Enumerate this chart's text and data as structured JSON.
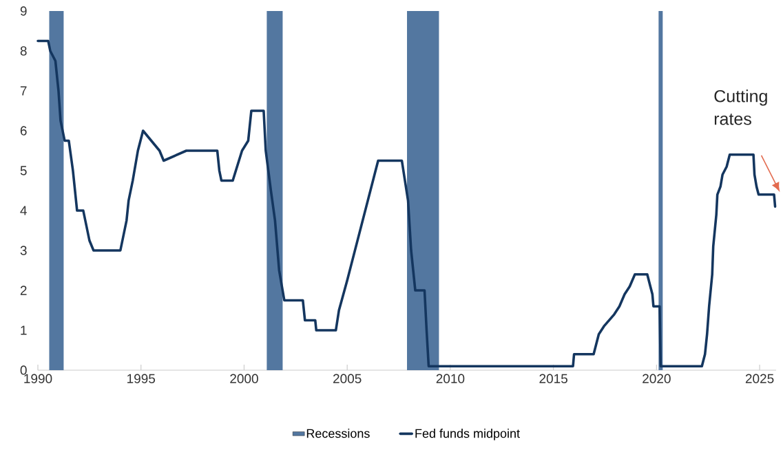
{
  "chart_data": {
    "type": "line",
    "x": [
      1990.0,
      1990.5,
      1990.6,
      1990.85,
      1991.0,
      1991.1,
      1991.3,
      1991.5,
      1991.7,
      1991.9,
      1992.2,
      1992.3,
      1992.5,
      1992.7,
      1994.0,
      1994.3,
      1994.4,
      1994.6,
      1994.85,
      1995.1,
      1995.5,
      1995.9,
      1996.1,
      1997.2,
      1998.7,
      1998.8,
      1998.9,
      1999.45,
      1999.6,
      1999.9,
      2000.2,
      2000.35,
      2000.95,
      2001.05,
      2001.3,
      2001.5,
      2001.7,
      2001.95,
      2002.85,
      2002.95,
      2003.45,
      2003.5,
      2004.45,
      2004.6,
      2005.0,
      2005.5,
      2006.0,
      2006.5,
      2007.65,
      2007.8,
      2007.95,
      2008.1,
      2008.3,
      2008.75,
      2008.85,
      2008.95,
      2015.95,
      2016.0,
      2016.95,
      2017.2,
      2017.45,
      2017.95,
      2018.2,
      2018.45,
      2018.7,
      2018.95,
      2019.55,
      2019.7,
      2019.8,
      2019.85,
      2020.15,
      2020.2,
      2022.2,
      2022.35,
      2022.45,
      2022.55,
      2022.7,
      2022.75,
      2022.9,
      2022.95,
      2023.1,
      2023.2,
      2023.4,
      2023.55,
      2024.7,
      2024.75,
      2024.85,
      2024.95,
      2025.7,
      2025.75
    ],
    "series": [
      {
        "name": "Fed funds midpoint",
        "color": "#14365f",
        "values": [
          8.25,
          8.25,
          8.0,
          7.75,
          7.0,
          6.25,
          5.75,
          5.75,
          5.0,
          4.0,
          4.0,
          3.75,
          3.25,
          3.0,
          3.0,
          3.75,
          4.25,
          4.75,
          5.5,
          6.0,
          5.75,
          5.5,
          5.25,
          5.5,
          5.5,
          5.0,
          4.75,
          4.75,
          5.0,
          5.5,
          5.75,
          6.5,
          6.5,
          5.5,
          4.5,
          3.75,
          2.5,
          1.75,
          1.75,
          1.25,
          1.25,
          1.0,
          1.0,
          1.5,
          2.25,
          3.25,
          4.25,
          5.25,
          5.25,
          4.75,
          4.25,
          3.0,
          2.0,
          2.0,
          1.0,
          0.1,
          0.1,
          0.4,
          0.4,
          0.9,
          1.1,
          1.4,
          1.6,
          1.9,
          2.1,
          2.4,
          2.4,
          2.1,
          1.9,
          1.6,
          1.6,
          0.1,
          0.1,
          0.4,
          0.9,
          1.6,
          2.4,
          3.1,
          3.9,
          4.4,
          4.6,
          4.9,
          5.1,
          5.4,
          5.4,
          4.9,
          4.6,
          4.4,
          4.4,
          4.1
        ]
      }
    ],
    "xlim": [
      1990,
      2025.8
    ],
    "ylim": [
      0,
      9
    ],
    "xticks": [
      1990,
      1995,
      2000,
      2005,
      2010,
      2015,
      2020,
      2025
    ],
    "yticks": [
      0,
      1,
      2,
      3,
      4,
      5,
      6,
      7,
      8,
      9
    ],
    "bands": [
      {
        "axis": "x",
        "from": 1990.55,
        "to": 1991.25,
        "label": "Recessions",
        "color": "#5377a0"
      },
      {
        "axis": "x",
        "from": 2001.1,
        "to": 2001.87,
        "color": "#5377a0"
      },
      {
        "axis": "x",
        "from": 2007.9,
        "to": 2009.45,
        "color": "#5377a0"
      },
      {
        "axis": "x",
        "from": 2020.1,
        "to": 2020.3,
        "color": "#5377a0"
      }
    ],
    "annotations": [
      "Cutting rates"
    ],
    "legend": "bottom",
    "grid": false,
    "marker": "none",
    "line_style": "solid"
  }
}
